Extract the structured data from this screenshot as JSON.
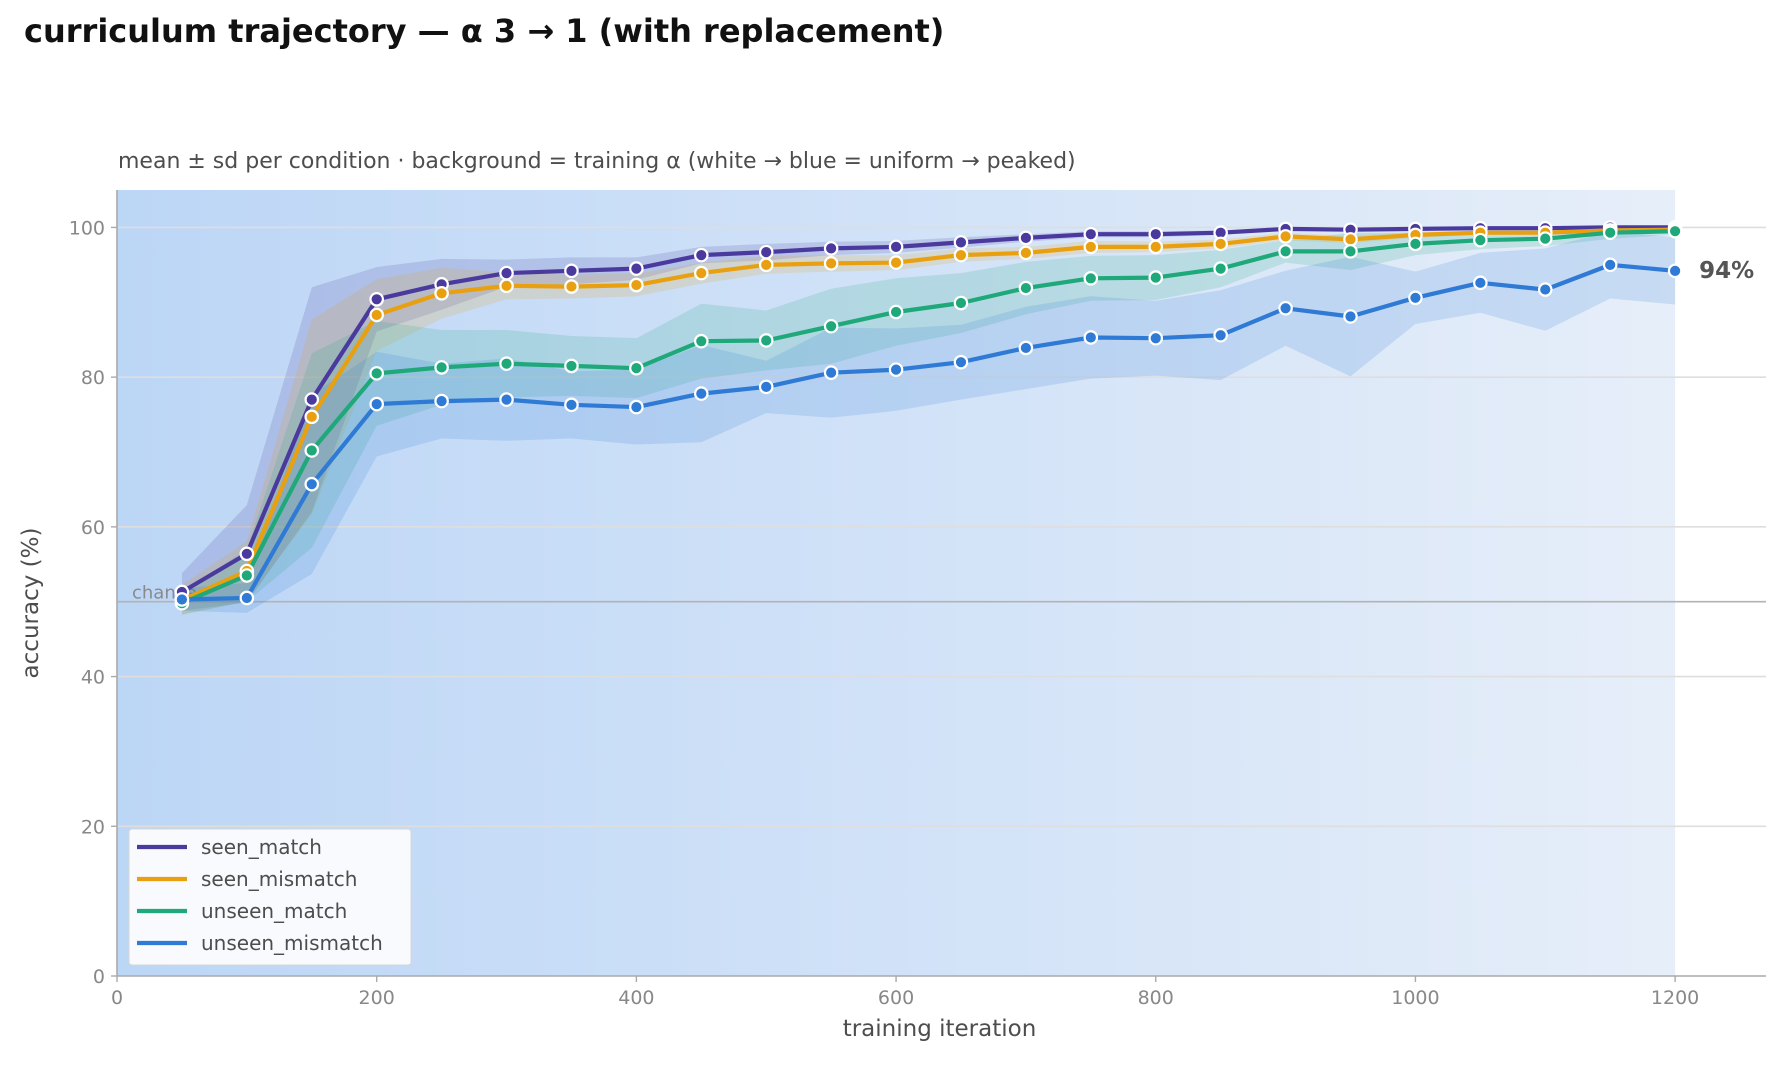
{
  "title": "curriculum trajectory — α 3 → 1 (with replacement)",
  "subtitle": "mean ± sd per condition · background = training α (white → blue = uniform → peaked)",
  "colors": {
    "seen_match": "#4a3a9e",
    "seen_mismatch": "#e8a010",
    "unseen_match": "#1fa87a",
    "unseen_mismatch": "#2f7ad4",
    "background_peaked": "#bcd6f6",
    "background_uniform": "#e6eef9",
    "chance_line": "#b3b3b3",
    "grid": "#dedede"
  },
  "chart_data": {
    "type": "line",
    "xlabel": "training iteration",
    "ylabel": "accuracy (%)",
    "xlim": [
      0,
      1270
    ],
    "ylim": [
      0,
      105
    ],
    "xticks": [
      0,
      200,
      400,
      600,
      800,
      1000,
      1200
    ],
    "yticks": [
      0,
      20,
      40,
      60,
      80,
      100
    ],
    "grid": "horizontal",
    "legend_position": "lower-left",
    "chance": {
      "label": "chance",
      "value": 50
    },
    "background": {
      "alpha_from": 3,
      "alpha_to": 1,
      "x_start": 0,
      "x_end": 1200
    },
    "end_label": {
      "text": "94%",
      "series": "unseen_mismatch"
    },
    "x": [
      50,
      100,
      150,
      200,
      250,
      300,
      350,
      400,
      450,
      500,
      550,
      600,
      650,
      700,
      750,
      800,
      850,
      900,
      950,
      1000,
      1050,
      1100,
      1150,
      1200
    ],
    "series": [
      {
        "name": "seen_match",
        "color": "#4a3a9e",
        "values": [
          51.3,
          56.4,
          77.0,
          90.4,
          92.4,
          93.9,
          94.2,
          94.5,
          96.3,
          96.7,
          97.2,
          97.4,
          98.0,
          98.6,
          99.1,
          99.1,
          99.3,
          99.8,
          99.7,
          99.8,
          99.9,
          99.9,
          100.0,
          100.0
        ],
        "sd": [
          2.5,
          6.5,
          15.0,
          4.3,
          3.4,
          1.8,
          1.8,
          1.5,
          1.1,
          1.1,
          0.9,
          0.8,
          0.7,
          0.5,
          0.4,
          0.4,
          0.3,
          0.2,
          0.2,
          0.2,
          0.1,
          0.1,
          0.1,
          0.1
        ]
      },
      {
        "name": "seen_mismatch",
        "color": "#e8a010",
        "values": [
          50.2,
          54.1,
          74.7,
          88.3,
          91.2,
          92.2,
          92.1,
          92.3,
          93.9,
          95.0,
          95.2,
          95.3,
          96.3,
          96.6,
          97.4,
          97.4,
          97.8,
          98.8,
          98.4,
          99.0,
          99.3,
          99.3,
          99.6,
          99.7
        ],
        "sd": [
          2.0,
          4.0,
          13.0,
          4.8,
          3.4,
          1.8,
          1.6,
          1.5,
          1.4,
          1.2,
          1.1,
          1.0,
          0.9,
          0.8,
          0.8,
          0.7,
          0.6,
          0.5,
          0.5,
          0.4,
          0.3,
          0.3,
          0.3,
          0.2
        ]
      },
      {
        "name": "unseen_match",
        "color": "#1fa87a",
        "values": [
          49.8,
          53.5,
          70.2,
          80.5,
          81.3,
          81.8,
          81.5,
          81.2,
          84.8,
          84.9,
          86.8,
          88.7,
          89.9,
          91.9,
          93.2,
          93.3,
          94.5,
          96.8,
          96.8,
          97.8,
          98.3,
          98.5,
          99.3,
          99.5
        ],
        "sd": [
          1.5,
          3.5,
          13.0,
          7.0,
          5.0,
          4.5,
          4.0,
          4.0,
          5.0,
          4.0,
          5.0,
          4.5,
          4.0,
          3.5,
          3.0,
          3.0,
          2.5,
          1.5,
          2.5,
          1.5,
          1.2,
          1.0,
          0.8,
          0.5
        ]
      },
      {
        "name": "unseen_mismatch",
        "color": "#2f7ad4",
        "values": [
          50.3,
          50.5,
          65.7,
          76.4,
          76.8,
          77.0,
          76.3,
          76.0,
          77.8,
          78.7,
          80.6,
          81.0,
          82.0,
          83.9,
          85.3,
          85.2,
          85.6,
          89.2,
          88.1,
          90.6,
          92.6,
          91.7,
          95.0,
          94.2
        ],
        "sd": [
          1.5,
          2.0,
          12.0,
          7.0,
          5.0,
          5.5,
          4.5,
          5.0,
          6.5,
          3.5,
          6.0,
          5.5,
          5.0,
          5.5,
          5.5,
          5.0,
          6.0,
          5.0,
          8.0,
          3.5,
          4.0,
          5.5,
          4.5,
          4.5
        ]
      }
    ]
  }
}
